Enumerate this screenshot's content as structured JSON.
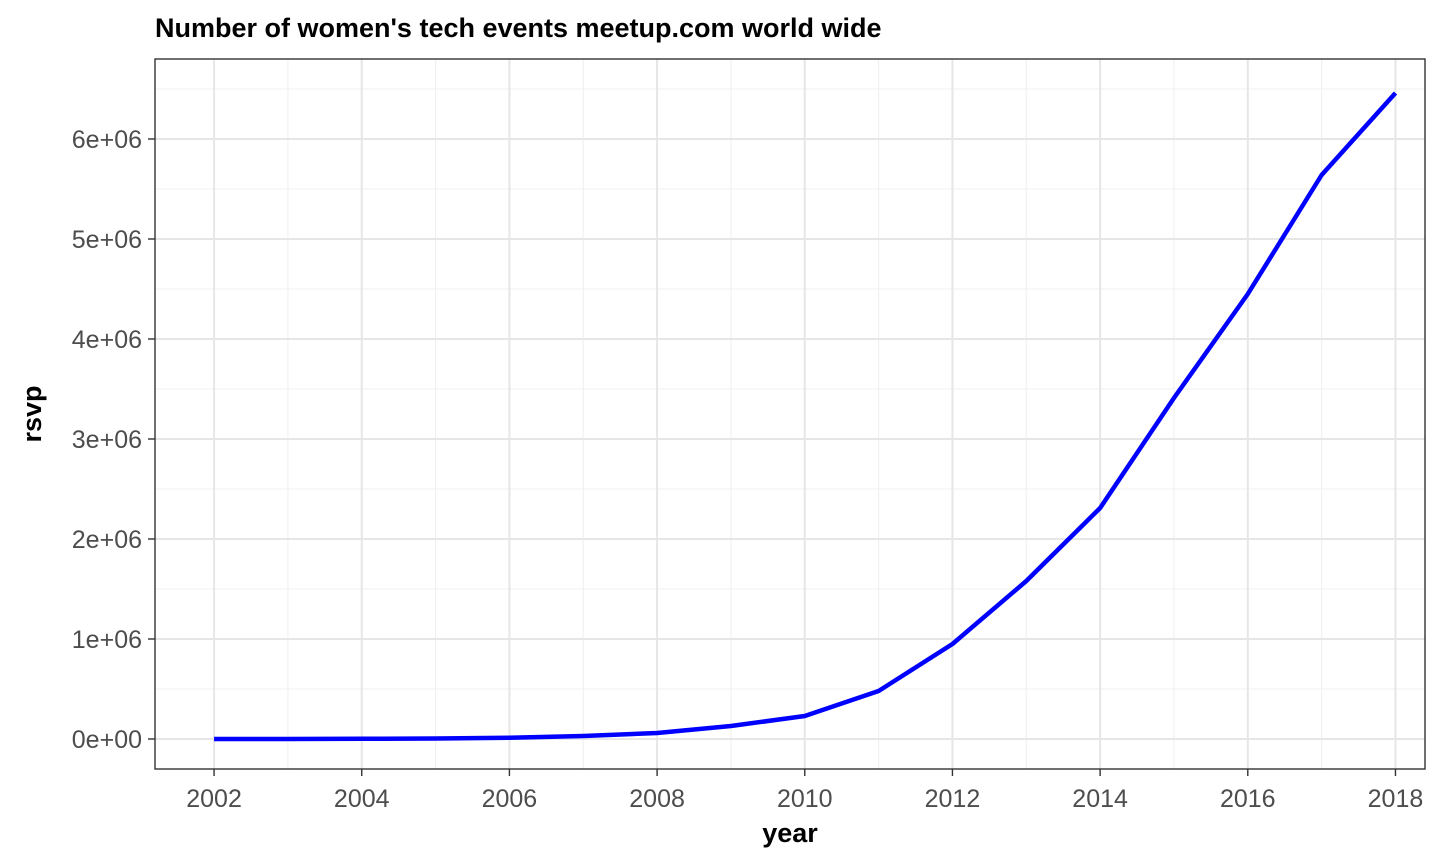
{
  "chart_data": {
    "type": "line",
    "title": "Number of women's tech events meetup.com world wide",
    "xlabel": "year",
    "ylabel": "rsvp",
    "xlim": [
      2001.2,
      2018.4
    ],
    "ylim": [
      -300000,
      6800000
    ],
    "x_ticks": [
      2002,
      2004,
      2006,
      2008,
      2010,
      2012,
      2014,
      2016,
      2018
    ],
    "x_tick_labels": [
      "2002",
      "2004",
      "2006",
      "2008",
      "2010",
      "2012",
      "2014",
      "2016",
      "2018"
    ],
    "y_ticks": [
      0,
      1000000,
      2000000,
      3000000,
      4000000,
      5000000,
      6000000
    ],
    "y_tick_labels": [
      "0e+00",
      "1e+06",
      "2e+06",
      "3e+06",
      "4e+06",
      "5e+06",
      "6e+06"
    ],
    "grid": true,
    "legend": "none",
    "series": [
      {
        "color": "#0000ff",
        "x": [
          2002,
          2003,
          2004,
          2005,
          2006,
          2007,
          2008,
          2009,
          2010,
          2011,
          2012,
          2013,
          2014,
          2015,
          2016,
          2017,
          2018
        ],
        "y": [
          0,
          0,
          2000,
          5000,
          12000,
          30000,
          60000,
          130000,
          230000,
          480000,
          950000,
          1580000,
          2310000,
          3410000,
          4450000,
          5640000,
          6460000
        ]
      }
    ]
  }
}
